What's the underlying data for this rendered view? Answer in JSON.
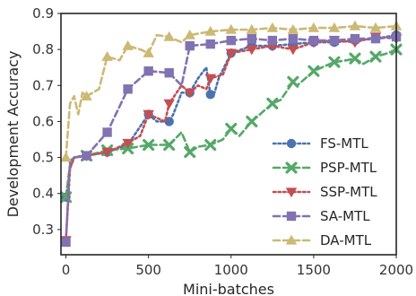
{
  "chart_data": {
    "type": "line",
    "title": "",
    "xlabel": "Mini-batches",
    "ylabel": "Development Accuracy",
    "xlim": [
      -30,
      2000
    ],
    "ylim": [
      0.23,
      0.9
    ],
    "xticks": [
      0,
      500,
      1000,
      1500,
      2000
    ],
    "yticks": [
      0.3,
      0.4,
      0.5,
      0.6,
      0.7,
      0.8,
      0.9
    ],
    "grid": false,
    "legend_position": "lower-right",
    "series": [
      {
        "name": "FS-MTL",
        "color": "#4c72b0",
        "marker": "circle",
        "dash": "dotted",
        "points": [
          [
            0,
            0.39
          ],
          [
            25,
            0.47
          ],
          [
            50,
            0.5
          ],
          [
            100,
            0.505
          ],
          [
            125,
            0.505
          ],
          [
            250,
            0.515
          ],
          [
            375,
            0.535
          ],
          [
            500,
            0.62
          ],
          [
            550,
            0.6
          ],
          [
            625,
            0.6
          ],
          [
            650,
            0.62
          ],
          [
            700,
            0.68
          ],
          [
            750,
            0.68
          ],
          [
            800,
            0.72
          ],
          [
            850,
            0.75
          ],
          [
            875,
            0.675
          ],
          [
            900,
            0.68
          ],
          [
            925,
            0.72
          ],
          [
            1000,
            0.79
          ],
          [
            1125,
            0.81
          ],
          [
            1250,
            0.81
          ],
          [
            1375,
            0.815
          ],
          [
            1500,
            0.82
          ],
          [
            1625,
            0.82
          ],
          [
            1750,
            0.825
          ],
          [
            1875,
            0.83
          ],
          [
            2000,
            0.84
          ]
        ],
        "marker_points": [
          [
            0,
            0.39
          ],
          [
            125,
            0.505
          ],
          [
            250,
            0.515
          ],
          [
            375,
            0.535
          ],
          [
            500,
            0.62
          ],
          [
            625,
            0.6
          ],
          [
            750,
            0.68
          ],
          [
            875,
            0.675
          ],
          [
            1000,
            0.79
          ],
          [
            1125,
            0.81
          ],
          [
            1250,
            0.81
          ],
          [
            1375,
            0.815
          ],
          [
            1500,
            0.82
          ],
          [
            1625,
            0.82
          ],
          [
            1750,
            0.825
          ],
          [
            1875,
            0.83
          ],
          [
            2000,
            0.84
          ]
        ]
      },
      {
        "name": "PSP-MTL",
        "color": "#55a868",
        "marker": "x",
        "dash": "dashed",
        "points": [
          [
            0,
            0.39
          ],
          [
            25,
            0.48
          ],
          [
            50,
            0.5
          ],
          [
            125,
            0.505
          ],
          [
            250,
            0.52
          ],
          [
            375,
            0.525
          ],
          [
            500,
            0.535
          ],
          [
            625,
            0.535
          ],
          [
            700,
            0.57
          ],
          [
            750,
            0.515
          ],
          [
            800,
            0.53
          ],
          [
            875,
            0.535
          ],
          [
            950,
            0.55
          ],
          [
            1000,
            0.58
          ],
          [
            1050,
            0.56
          ],
          [
            1125,
            0.6
          ],
          [
            1200,
            0.63
          ],
          [
            1250,
            0.65
          ],
          [
            1300,
            0.66
          ],
          [
            1375,
            0.71
          ],
          [
            1400,
            0.7
          ],
          [
            1450,
            0.72
          ],
          [
            1500,
            0.74
          ],
          [
            1550,
            0.75
          ],
          [
            1625,
            0.765
          ],
          [
            1700,
            0.77
          ],
          [
            1750,
            0.775
          ],
          [
            1800,
            0.76
          ],
          [
            1875,
            0.78
          ],
          [
            1950,
            0.79
          ],
          [
            2000,
            0.8
          ]
        ],
        "marker_points": [
          [
            0,
            0.39
          ],
          [
            125,
            0.505
          ],
          [
            250,
            0.52
          ],
          [
            375,
            0.525
          ],
          [
            500,
            0.535
          ],
          [
            625,
            0.535
          ],
          [
            750,
            0.515
          ],
          [
            875,
            0.535
          ],
          [
            1000,
            0.58
          ],
          [
            1125,
            0.6
          ],
          [
            1250,
            0.65
          ],
          [
            1375,
            0.71
          ],
          [
            1500,
            0.74
          ],
          [
            1625,
            0.765
          ],
          [
            1750,
            0.775
          ],
          [
            1875,
            0.78
          ],
          [
            2000,
            0.8
          ]
        ]
      },
      {
        "name": "SSP-MTL",
        "color": "#c44e52",
        "marker": "triangle-down",
        "dash": "dotted",
        "points": [
          [
            0,
            0.27
          ],
          [
            25,
            0.47
          ],
          [
            50,
            0.5
          ],
          [
            125,
            0.505
          ],
          [
            250,
            0.515
          ],
          [
            375,
            0.54
          ],
          [
            450,
            0.56
          ],
          [
            500,
            0.62
          ],
          [
            600,
            0.6
          ],
          [
            625,
            0.65
          ],
          [
            700,
            0.7
          ],
          [
            750,
            0.68
          ],
          [
            800,
            0.7
          ],
          [
            850,
            0.69
          ],
          [
            875,
            0.72
          ],
          [
            950,
            0.73
          ],
          [
            1000,
            0.79
          ],
          [
            1125,
            0.8
          ],
          [
            1250,
            0.81
          ],
          [
            1375,
            0.8
          ],
          [
            1500,
            0.82
          ],
          [
            1625,
            0.825
          ],
          [
            1750,
            0.82
          ],
          [
            1875,
            0.835
          ],
          [
            2000,
            0.83
          ]
        ],
        "marker_points": [
          [
            0,
            0.27
          ],
          [
            125,
            0.505
          ],
          [
            250,
            0.515
          ],
          [
            375,
            0.54
          ],
          [
            500,
            0.62
          ],
          [
            625,
            0.65
          ],
          [
            750,
            0.68
          ],
          [
            875,
            0.72
          ],
          [
            1000,
            0.79
          ],
          [
            1125,
            0.8
          ],
          [
            1250,
            0.81
          ],
          [
            1375,
            0.8
          ],
          [
            1500,
            0.82
          ],
          [
            1625,
            0.825
          ],
          [
            1750,
            0.82
          ],
          [
            1875,
            0.835
          ],
          [
            2000,
            0.83
          ]
        ]
      },
      {
        "name": "SA-MTL",
        "color": "#8172b2",
        "marker": "square",
        "dash": "dashed",
        "points": [
          [
            0,
            0.265
          ],
          [
            25,
            0.49
          ],
          [
            50,
            0.5
          ],
          [
            125,
            0.505
          ],
          [
            250,
            0.57
          ],
          [
            375,
            0.69
          ],
          [
            450,
            0.72
          ],
          [
            500,
            0.74
          ],
          [
            625,
            0.735
          ],
          [
            700,
            0.7
          ],
          [
            750,
            0.81
          ],
          [
            875,
            0.815
          ],
          [
            1000,
            0.825
          ],
          [
            1125,
            0.83
          ],
          [
            1250,
            0.825
          ],
          [
            1375,
            0.83
          ],
          [
            1500,
            0.825
          ],
          [
            1625,
            0.825
          ],
          [
            1750,
            0.83
          ],
          [
            1875,
            0.83
          ],
          [
            2000,
            0.835
          ]
        ],
        "marker_points": [
          [
            0,
            0.265
          ],
          [
            125,
            0.505
          ],
          [
            250,
            0.57
          ],
          [
            375,
            0.69
          ],
          [
            500,
            0.74
          ],
          [
            625,
            0.735
          ],
          [
            750,
            0.81
          ],
          [
            875,
            0.815
          ],
          [
            1000,
            0.825
          ],
          [
            1125,
            0.83
          ],
          [
            1250,
            0.825
          ],
          [
            1375,
            0.83
          ],
          [
            1500,
            0.825
          ],
          [
            1625,
            0.825
          ],
          [
            1750,
            0.83
          ],
          [
            1875,
            0.83
          ],
          [
            2000,
            0.835
          ]
        ]
      },
      {
        "name": "DA-MTL",
        "color": "#ccb974",
        "marker": "triangle-up",
        "dash": "dashed",
        "points": [
          [
            0,
            0.5
          ],
          [
            25,
            0.65
          ],
          [
            50,
            0.67
          ],
          [
            75,
            0.62
          ],
          [
            100,
            0.68
          ],
          [
            125,
            0.67
          ],
          [
            200,
            0.69
          ],
          [
            250,
            0.78
          ],
          [
            325,
            0.77
          ],
          [
            375,
            0.81
          ],
          [
            450,
            0.8
          ],
          [
            500,
            0.79
          ],
          [
            550,
            0.84
          ],
          [
            625,
            0.835
          ],
          [
            700,
            0.82
          ],
          [
            750,
            0.84
          ],
          [
            875,
            0.85
          ],
          [
            1000,
            0.855
          ],
          [
            1125,
            0.855
          ],
          [
            1250,
            0.86
          ],
          [
            1375,
            0.855
          ],
          [
            1500,
            0.86
          ],
          [
            1625,
            0.86
          ],
          [
            1750,
            0.865
          ],
          [
            1875,
            0.86
          ],
          [
            2000,
            0.865
          ]
        ],
        "marker_points": [
          [
            0,
            0.5
          ],
          [
            125,
            0.67
          ],
          [
            250,
            0.78
          ],
          [
            375,
            0.81
          ],
          [
            500,
            0.79
          ],
          [
            625,
            0.835
          ],
          [
            750,
            0.84
          ],
          [
            875,
            0.85
          ],
          [
            1000,
            0.855
          ],
          [
            1125,
            0.855
          ],
          [
            1250,
            0.86
          ],
          [
            1375,
            0.855
          ],
          [
            1500,
            0.86
          ],
          [
            1625,
            0.86
          ],
          [
            1750,
            0.865
          ],
          [
            1875,
            0.86
          ],
          [
            2000,
            0.865
          ]
        ]
      }
    ]
  }
}
